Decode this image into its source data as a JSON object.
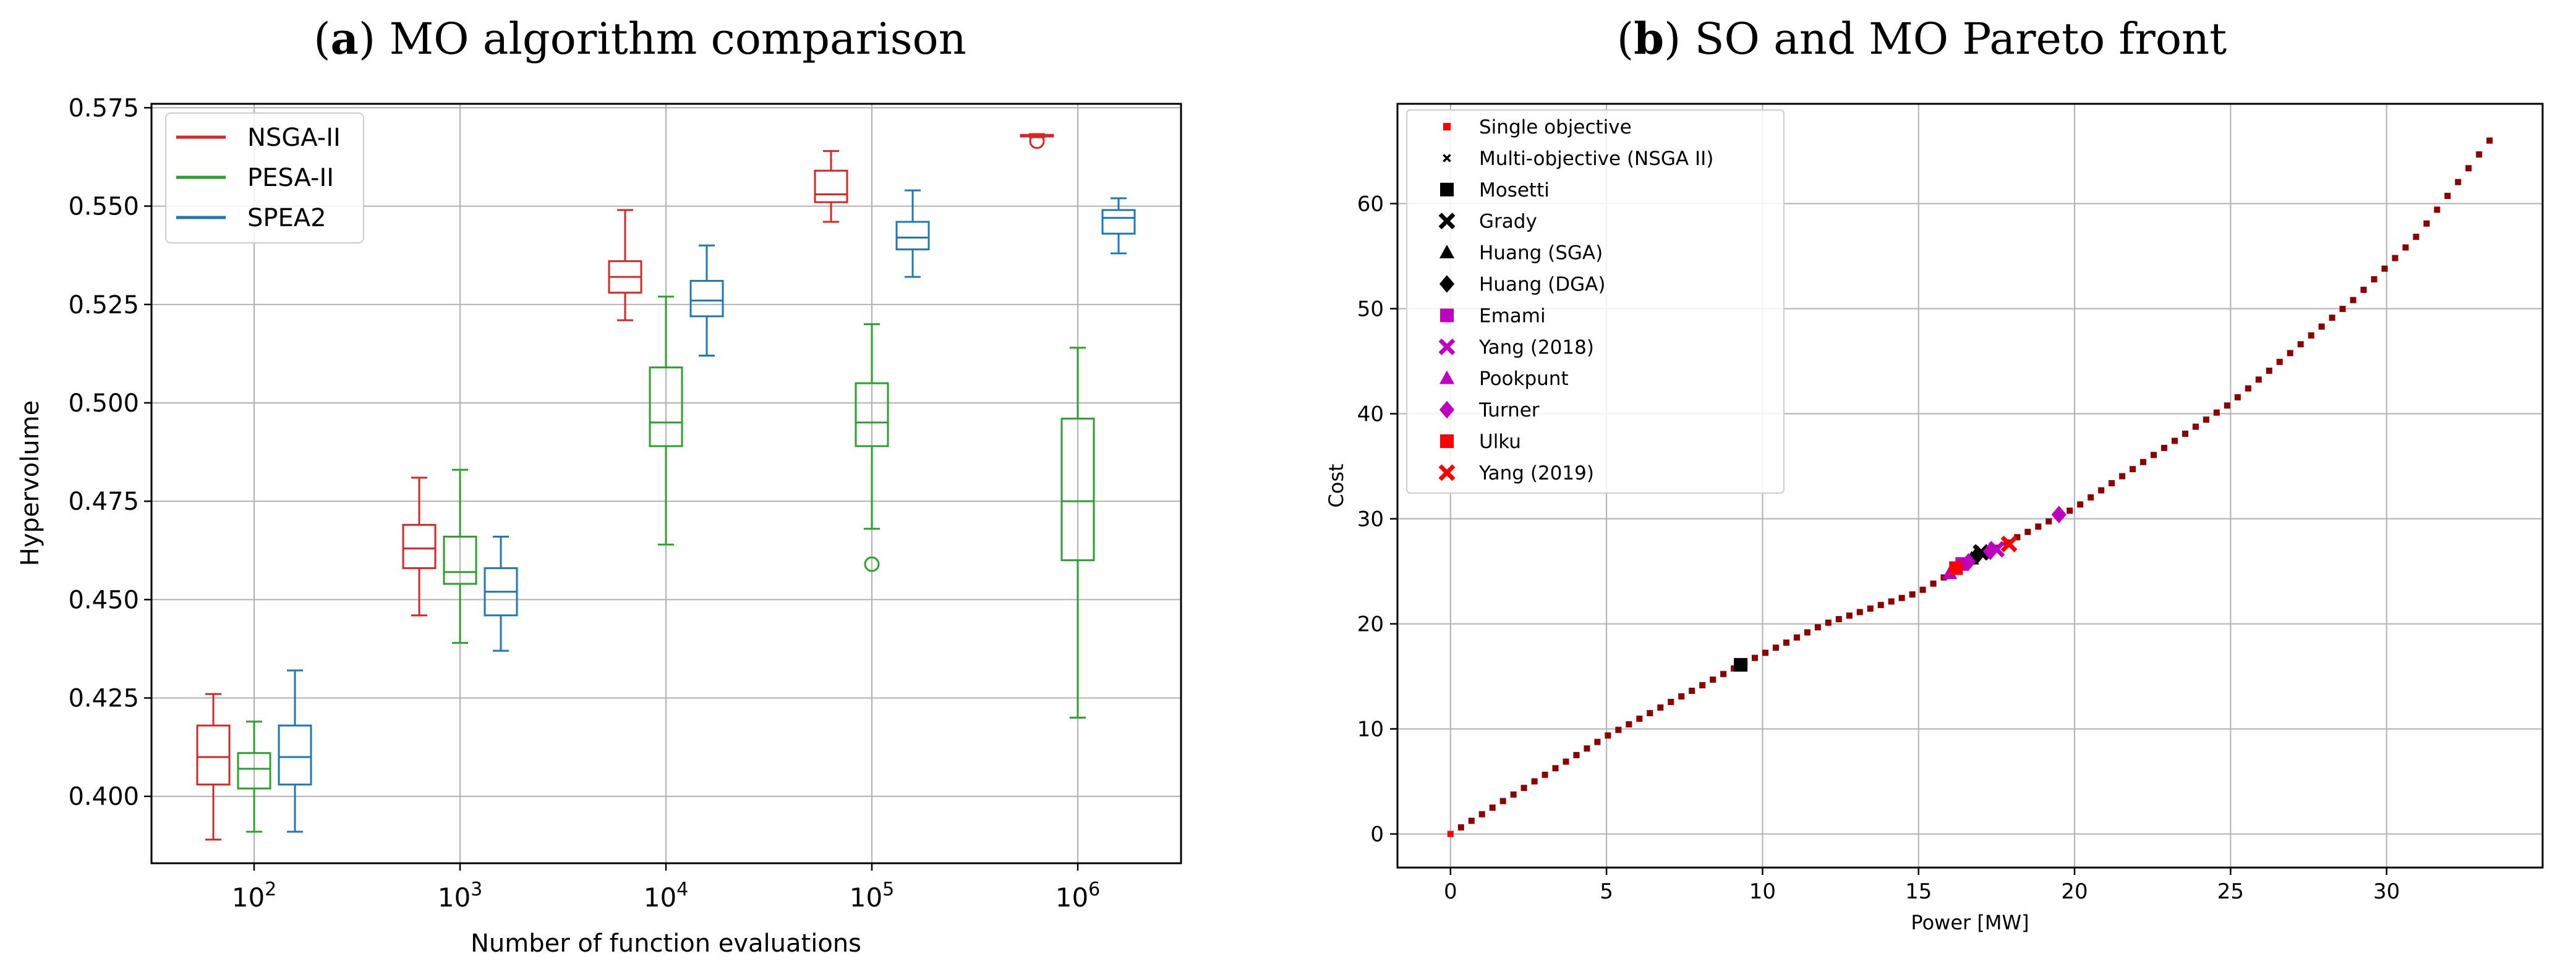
{
  "colors": {
    "nsga": "#d62728",
    "pesa": "#2ca02c",
    "spea": "#1f77b4",
    "grid": "#b0b0b0",
    "axis": "#000000",
    "pareto": "#8b0000",
    "so": "#ff0000",
    "lit_black": "#000000",
    "lit_magenta": "#bf00bf",
    "lit_red": "#ff0000"
  },
  "chart_data": [
    {
      "type": "box",
      "title_label": "a",
      "title_text": " MO algorithm comparison",
      "xlabel": "Number of function evaluations",
      "ylabel": "Hypervolume",
      "categories": [
        "10^2",
        "10^3",
        "10^4",
        "10^5",
        "10^6"
      ],
      "tick_labels": [
        {
          "base": "10",
          "exp": "2"
        },
        {
          "base": "10",
          "exp": "3"
        },
        {
          "base": "10",
          "exp": "4"
        },
        {
          "base": "10",
          "exp": "5"
        },
        {
          "base": "10",
          "exp": "6"
        }
      ],
      "ylim": [
        0.383,
        0.576
      ],
      "yticks": [
        0.4,
        0.425,
        0.45,
        0.475,
        0.5,
        0.525,
        0.55,
        0.575
      ],
      "ytick_labels": [
        "0.400",
        "0.425",
        "0.450",
        "0.475",
        "0.500",
        "0.525",
        "0.550",
        "0.575"
      ],
      "legend": {
        "placement": "top-left",
        "entries": [
          "NSGA-II",
          "PESA-II",
          "SPEA2"
        ]
      },
      "series": [
        {
          "name": "NSGA-II",
          "color_key": "nsga",
          "boxes": [
            {
              "whislo": 0.389,
              "q1": 0.403,
              "med": 0.41,
              "q3": 0.418,
              "whishi": 0.426,
              "fliers": []
            },
            {
              "whislo": 0.446,
              "q1": 0.458,
              "med": 0.463,
              "q3": 0.469,
              "whishi": 0.481,
              "fliers": []
            },
            {
              "whislo": 0.521,
              "q1": 0.528,
              "med": 0.532,
              "q3": 0.536,
              "whishi": 0.549,
              "fliers": []
            },
            {
              "whislo": 0.546,
              "q1": 0.551,
              "med": 0.553,
              "q3": 0.559,
              "whishi": 0.564,
              "fliers": []
            },
            {
              "whislo": 0.5675,
              "q1": 0.5677,
              "med": 0.5679,
              "q3": 0.5681,
              "whishi": 0.5683,
              "fliers": [
                0.5665
              ]
            }
          ]
        },
        {
          "name": "PESA-II",
          "color_key": "pesa",
          "boxes": [
            {
              "whislo": 0.391,
              "q1": 0.402,
              "med": 0.407,
              "q3": 0.411,
              "whishi": 0.419,
              "fliers": []
            },
            {
              "whislo": 0.439,
              "q1": 0.454,
              "med": 0.457,
              "q3": 0.466,
              "whishi": 0.483,
              "fliers": []
            },
            {
              "whislo": 0.464,
              "q1": 0.489,
              "med": 0.495,
              "q3": 0.509,
              "whishi": 0.527,
              "fliers": []
            },
            {
              "whislo": 0.468,
              "q1": 0.489,
              "med": 0.495,
              "q3": 0.505,
              "whishi": 0.52,
              "fliers": [
                0.459
              ]
            },
            {
              "whislo": 0.42,
              "q1": 0.46,
              "med": 0.475,
              "q3": 0.496,
              "whishi": 0.514,
              "fliers": []
            }
          ]
        },
        {
          "name": "SPEA2",
          "color_key": "spea",
          "boxes": [
            {
              "whislo": 0.391,
              "q1": 0.403,
              "med": 0.41,
              "q3": 0.418,
              "whishi": 0.432,
              "fliers": []
            },
            {
              "whislo": 0.437,
              "q1": 0.446,
              "med": 0.452,
              "q3": 0.458,
              "whishi": 0.466,
              "fliers": []
            },
            {
              "whislo": 0.512,
              "q1": 0.522,
              "med": 0.526,
              "q3": 0.531,
              "whishi": 0.54,
              "fliers": []
            },
            {
              "whislo": 0.532,
              "q1": 0.539,
              "med": 0.542,
              "q3": 0.546,
              "whishi": 0.554,
              "fliers": []
            },
            {
              "whislo": 0.538,
              "q1": 0.543,
              "med": 0.547,
              "q3": 0.549,
              "whishi": 0.552,
              "fliers": []
            }
          ]
        }
      ]
    },
    {
      "type": "scatter",
      "title_label": "b",
      "title_text": " SO and MO Pareto front",
      "xlabel": "Power [MW]",
      "ylabel": "Cost",
      "xlim": [
        -1.7,
        35.0
      ],
      "ylim": [
        -3.2,
        69.5
      ],
      "xticks": [
        0,
        5,
        10,
        15,
        20,
        25,
        30
      ],
      "yticks": [
        0,
        10,
        20,
        30,
        40,
        50,
        60
      ],
      "xtick_labels": [
        "0",
        "5",
        "10",
        "15",
        "20",
        "25",
        "30"
      ],
      "ytick_labels": [
        "0",
        "10",
        "20",
        "30",
        "40",
        "50",
        "60"
      ],
      "legend": {
        "placement": "top-left",
        "entries": [
          {
            "label": "Single objective",
            "marker": "small-square",
            "color_key": "so"
          },
          {
            "label": "Multi-objective (NSGA II)",
            "marker": "small-x",
            "color_key": "lit_black"
          },
          {
            "label": "Mosetti",
            "marker": "square",
            "color_key": "lit_black"
          },
          {
            "label": "Grady",
            "marker": "x",
            "color_key": "lit_black"
          },
          {
            "label": "Huang (SGA)",
            "marker": "triangle",
            "color_key": "lit_black"
          },
          {
            "label": "Huang (DGA)",
            "marker": "diamond",
            "color_key": "lit_black"
          },
          {
            "label": "Emami",
            "marker": "square",
            "color_key": "lit_magenta"
          },
          {
            "label": "Yang (2018)",
            "marker": "x",
            "color_key": "lit_magenta"
          },
          {
            "label": "Pookpunt",
            "marker": "triangle",
            "color_key": "lit_magenta"
          },
          {
            "label": "Turner",
            "marker": "diamond",
            "color_key": "lit_magenta"
          },
          {
            "label": "Ulku",
            "marker": "square",
            "color_key": "lit_red"
          },
          {
            "label": "Yang (2019)",
            "marker": "x",
            "color_key": "lit_red"
          }
        ]
      },
      "curve_knots": [
        [
          0.0,
          0.0
        ],
        [
          5.0,
          9.3
        ],
        [
          9.3,
          16.1
        ],
        [
          12.0,
          20.0
        ],
        [
          15.0,
          23.0
        ],
        [
          17.0,
          26.5
        ],
        [
          20.0,
          31.0
        ],
        [
          23.0,
          37.0
        ],
        [
          25.0,
          41.0
        ],
        [
          27.0,
          46.0
        ],
        [
          29.0,
          51.0
        ],
        [
          31.0,
          57.0
        ],
        [
          33.3,
          66.0
        ]
      ],
      "pareto_count": 100,
      "single_objective_point": [
        0.0,
        0.0
      ],
      "literature_points": [
        {
          "name": "Mosetti",
          "x": 9.3,
          "y": 16.1,
          "marker": "square",
          "color_key": "lit_black"
        },
        {
          "name": "Grady",
          "x": 17.0,
          "y": 26.8,
          "marker": "x",
          "color_key": "lit_black"
        },
        {
          "name": "Huang (SGA)",
          "x": 16.7,
          "y": 26.2,
          "marker": "triangle",
          "color_key": "lit_black"
        },
        {
          "name": "Huang (DGA)",
          "x": 16.9,
          "y": 26.6,
          "marker": "diamond",
          "color_key": "lit_black"
        },
        {
          "name": "Emami",
          "x": 16.4,
          "y": 25.7,
          "marker": "square",
          "color_key": "lit_magenta"
        },
        {
          "name": "Yang (2018)",
          "x": 17.5,
          "y": 27.1,
          "marker": "x",
          "color_key": "lit_magenta"
        },
        {
          "name": "Pookpunt",
          "x": 16.0,
          "y": 24.8,
          "marker": "triangle",
          "color_key": "lit_magenta"
        },
        {
          "name": "Turner",
          "x": 17.3,
          "y": 26.9,
          "marker": "diamond",
          "color_key": "lit_magenta"
        },
        {
          "name": "Turner",
          "x": 19.5,
          "y": 30.4,
          "marker": "diamond",
          "color_key": "lit_magenta"
        },
        {
          "name": "Turner",
          "x": 16.6,
          "y": 25.9,
          "marker": "diamond",
          "color_key": "lit_magenta"
        },
        {
          "name": "Ulku",
          "x": 16.2,
          "y": 25.3,
          "marker": "square",
          "color_key": "lit_red"
        },
        {
          "name": "Yang (2019)",
          "x": 17.9,
          "y": 27.6,
          "marker": "x",
          "color_key": "lit_red"
        }
      ]
    }
  ]
}
